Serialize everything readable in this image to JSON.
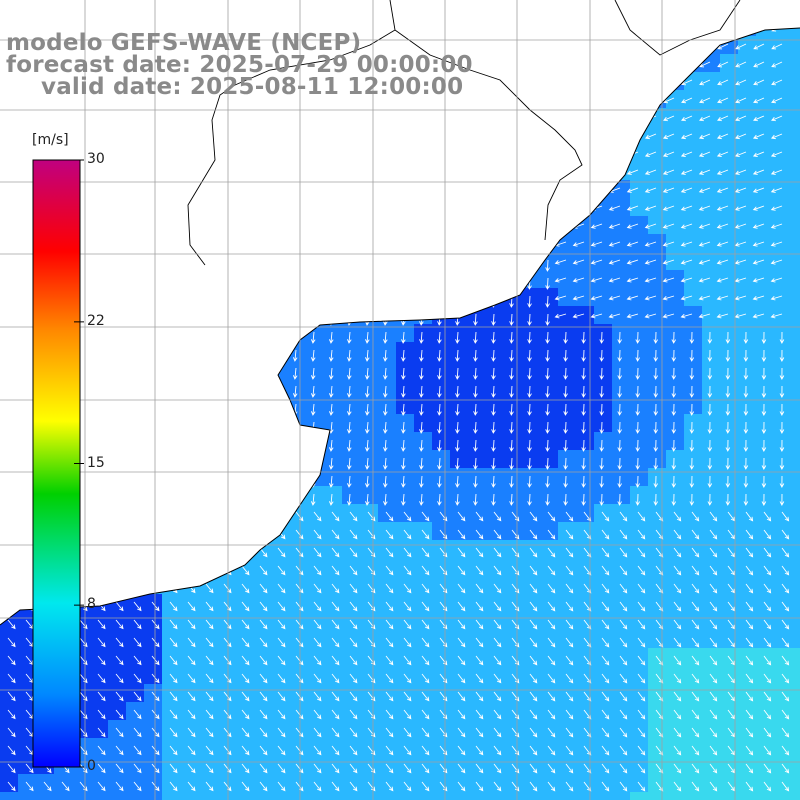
{
  "title": {
    "line1": "modelo GEFS-WAVE (NCEP)",
    "line2": "forecast date: 2025-07-29 00:00:00",
    "line3": "valid date: 2025-08-11 12:00:00"
  },
  "legend": {
    "unit": "[m/s]",
    "min": 0,
    "max": 30,
    "ticks": [
      {
        "value": 30,
        "label": "30"
      },
      {
        "value": 22,
        "label": "22"
      },
      {
        "value": 15,
        "label": "15"
      },
      {
        "value": 8,
        "label": "8"
      },
      {
        "value": 0,
        "label": "0"
      }
    ],
    "colors": [
      "#0000ff",
      "#0088ff",
      "#00e8ee",
      "#00d000",
      "#ffff00",
      "#ff8800",
      "#ff0000",
      "#c00080"
    ]
  },
  "map": {
    "land_color": "#ffffff",
    "grid_color": "#9a9a9a",
    "field_palette": {
      "deep": "#0a3cf0",
      "mid": "#1a80ff",
      "light": "#2ab8ff",
      "cyan": "#39d9ee"
    }
  },
  "chart_data": {
    "type": "heatmap",
    "variable": "wind speed with direction arrows",
    "unit": "m/s",
    "colorbar_range": [
      0,
      30
    ],
    "colorbar_ticks": [
      0,
      8,
      15,
      22,
      30
    ]
  }
}
